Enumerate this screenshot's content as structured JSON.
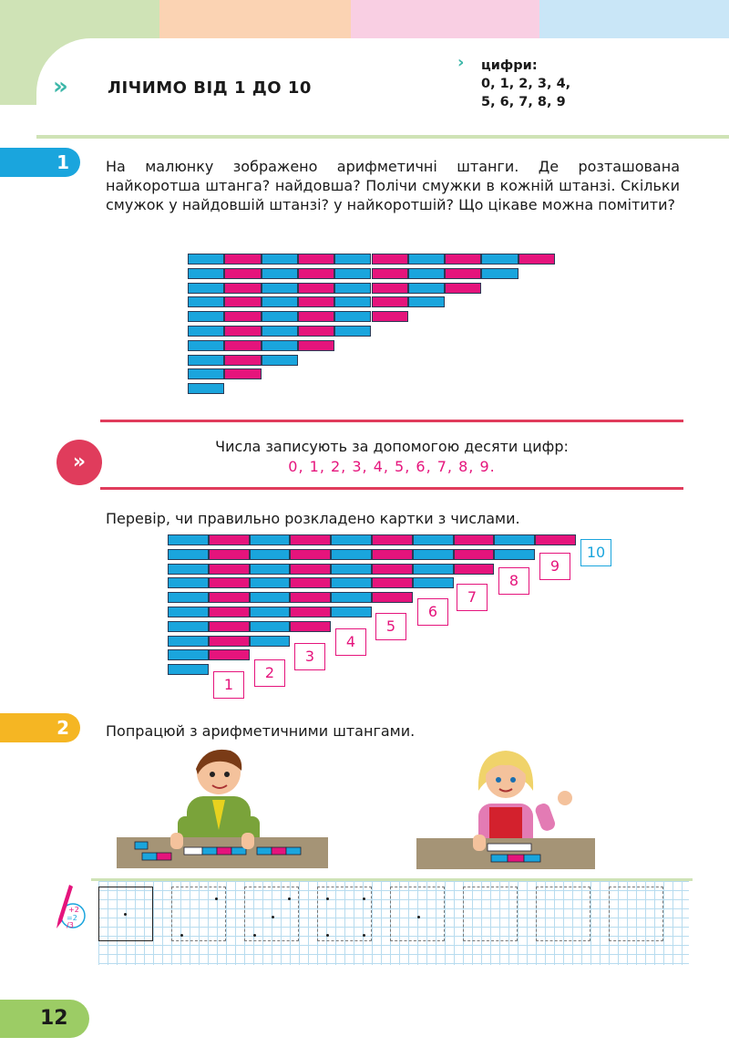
{
  "header": {
    "title": "ЛІЧИМО ВІД 1 ДО 10",
    "chevrons": "»",
    "digits_label": "цифри:",
    "digits_line1": "0, 1, 2, 3, 4,",
    "digits_line2": "5, 6, 7, 8, 9"
  },
  "colors": {
    "blue": "#1aa5dd",
    "pink": "#e5147c",
    "green": "#9ccc65",
    "orange": "#f5b623",
    "rule_red": "#e03c5c",
    "top_bands": [
      "#cfe3b6",
      "#fbd3b3",
      "#f9cfe3",
      "#c9e6f7"
    ]
  },
  "task1": {
    "number": "1",
    "text": "На малюнку зображено арифметичні штанги. Де розташована найкоротша штанга? найдовша? Полічи смужки в кожній штанзі. Скільки смужок у найдовшій штанзі? у найкоротшій? Що цікаве можна помітити?",
    "rod_lengths": [
      10,
      9,
      8,
      7,
      6,
      5,
      4,
      3,
      2,
      1
    ]
  },
  "rule": {
    "icon": "»",
    "line1": "Числа записують за допомогою десяти цифр:",
    "line2": "0, 1, 2, 3, 4, 5, 6, 7, 8, 9."
  },
  "check": {
    "text": "Перевір, чи правильно розкладено картки з числами.",
    "cards": [
      "1",
      "2",
      "3",
      "4",
      "5",
      "6",
      "7",
      "8",
      "9",
      "10"
    ]
  },
  "task2": {
    "number": "2",
    "text": "Попрацюй з арифметичними штангами."
  },
  "writing": {
    "icon": "pencil-math-icon"
  },
  "page_number": "12"
}
